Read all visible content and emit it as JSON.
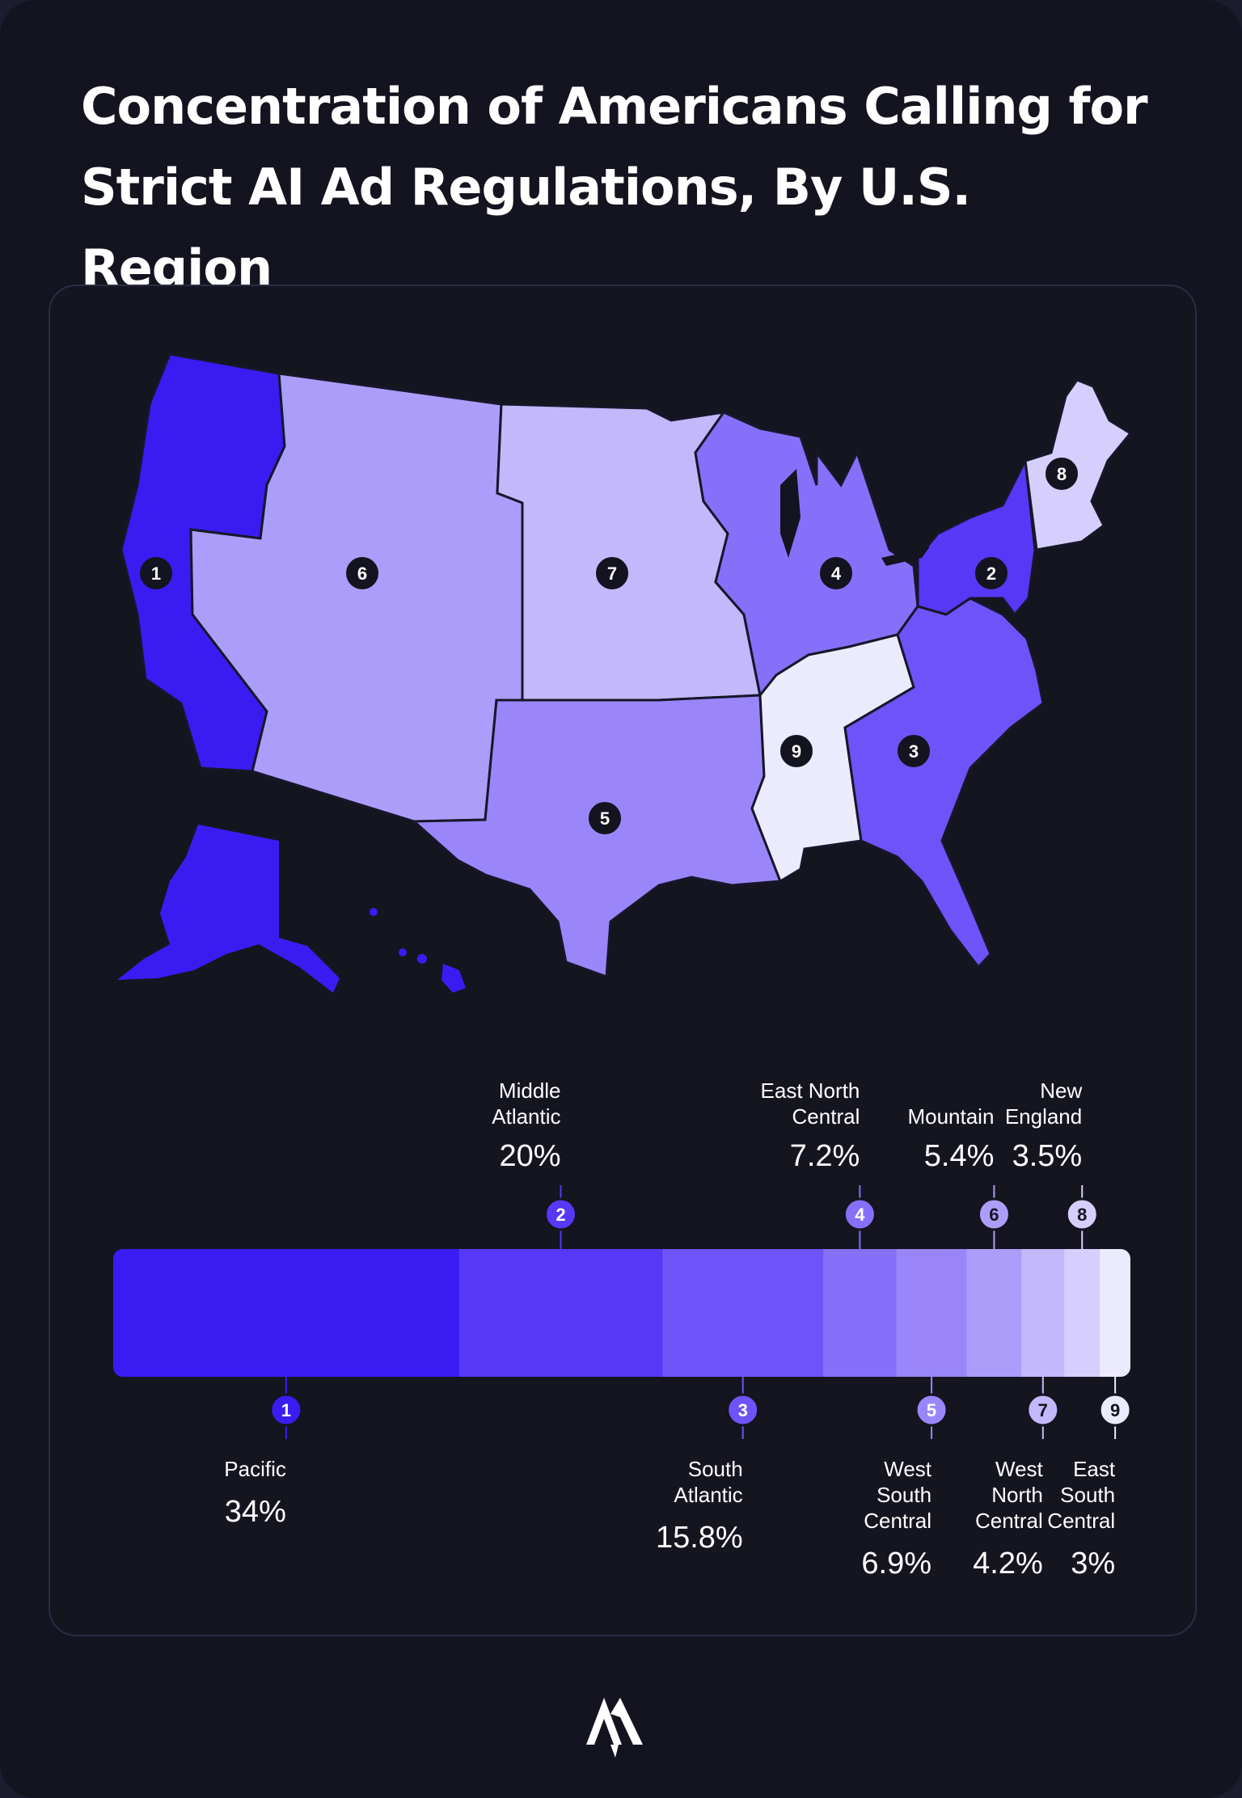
{
  "title": "Concentration of Americans Calling for Strict AI Ad Regulations, By U.S. Region",
  "chart_data": {
    "type": "bar",
    "subtype": "stacked-100-percent-bar with choropleth map",
    "title": "Concentration of Americans Calling for Strict AI Ad Regulations, By U.S. Region",
    "categories": [
      "Pacific",
      "Middle Atlantic",
      "South Atlantic",
      "East North Central",
      "West South Central",
      "Mountain",
      "West North Central",
      "New England",
      "East South Central"
    ],
    "numbers": [
      "1",
      "2",
      "3",
      "4",
      "5",
      "6",
      "7",
      "8",
      "9"
    ],
    "values": [
      34,
      20,
      15.8,
      7.2,
      6.9,
      5.4,
      4.2,
      3.5,
      3
    ],
    "value_labels": [
      "34%",
      "20%",
      "15.8%",
      "7.2%",
      "6.9%",
      "5.4%",
      "4.2%",
      "3.5%",
      "3%"
    ],
    "label_lines": [
      [
        "Pacific"
      ],
      [
        "Middle",
        "Atlantic"
      ],
      [
        "South",
        "Atlantic"
      ],
      [
        "East North",
        "Central"
      ],
      [
        "West",
        "South",
        "Central"
      ],
      [
        "Mountain"
      ],
      [
        "West",
        "North",
        "Central"
      ],
      [
        "New",
        "England"
      ],
      [
        "East",
        "South",
        "Central"
      ]
    ],
    "label_side": [
      "below",
      "above",
      "below",
      "above",
      "below",
      "above",
      "below",
      "above",
      "below"
    ],
    "colors": [
      "#3a1cf3",
      "#5638f6",
      "#6e53f8",
      "#8670f9",
      "#9a86fa",
      "#ad9dfb",
      "#c3b8fc",
      "#d6cffd",
      "#ecebfd"
    ],
    "map_regions": [
      {
        "number": "1",
        "name": "Pacific",
        "color": "#3a1cf3"
      },
      {
        "number": "2",
        "name": "Middle Atlantic",
        "color": "#5638f6"
      },
      {
        "number": "3",
        "name": "South Atlantic",
        "color": "#6e53f8"
      },
      {
        "number": "4",
        "name": "East North Central",
        "color": "#8670f9"
      },
      {
        "number": "5",
        "name": "West South Central",
        "color": "#9a86fa"
      },
      {
        "number": "6",
        "name": "Mountain",
        "color": "#ad9dfb"
      },
      {
        "number": "7",
        "name": "West North Central",
        "color": "#c3b8fc"
      },
      {
        "number": "8",
        "name": "New England",
        "color": "#d6cffd"
      },
      {
        "number": "9",
        "name": "East South Central",
        "color": "#ecebfd"
      }
    ]
  },
  "logo": {
    "icon": "brand-logo-icon"
  }
}
